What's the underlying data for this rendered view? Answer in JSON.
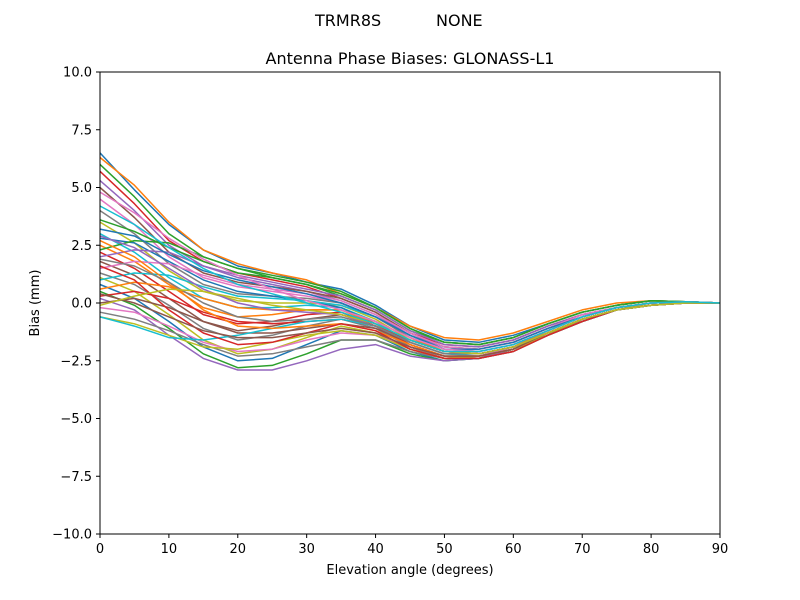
{
  "figure": {
    "suptitle_left": "TRMR8S",
    "suptitle_right": "NONE"
  },
  "chart_data": {
    "type": "line",
    "title": "Antenna Phase Biases: GLONASS-L1",
    "xlabel": "Elevation angle (degrees)",
    "ylabel": "Bias (mm)",
    "xlim": [
      0,
      90
    ],
    "ylim": [
      -10,
      10
    ],
    "xticks": [
      0,
      10,
      20,
      30,
      40,
      50,
      60,
      70,
      80,
      90
    ],
    "xtick_labels": [
      "0",
      "10",
      "20",
      "30",
      "40",
      "50",
      "60",
      "70",
      "80",
      "90"
    ],
    "yticks": [
      -10,
      -7.5,
      -5,
      -2.5,
      0,
      2.5,
      5,
      7.5,
      10
    ],
    "ytick_labels": [
      "−10.0",
      "−7.5",
      "−5.0",
      "−2.5",
      "0.0",
      "2.5",
      "5.0",
      "7.5",
      "10.0"
    ],
    "grid": false,
    "colors": [
      "#1f77b4",
      "#ff7f0e",
      "#2ca02c",
      "#d62728",
      "#9467bd",
      "#8c564b",
      "#e377c2",
      "#7f7f7f",
      "#bcbd22",
      "#17becf"
    ],
    "x": [
      0,
      5,
      10,
      15,
      20,
      25,
      30,
      35,
      40,
      45,
      50,
      55,
      60,
      65,
      70,
      75,
      80,
      85,
      90
    ],
    "series": [
      {
        "values": [
          6.5,
          4.9,
          3.4,
          2.3,
          1.6,
          1.3,
          0.9,
          0.6,
          -0.1,
          -1.0,
          -1.6,
          -1.7,
          -1.4,
          -0.9,
          -0.4,
          -0.1,
          0.1,
          0.05,
          0.0
        ]
      },
      {
        "values": [
          6.3,
          5.1,
          3.5,
          2.3,
          1.7,
          1.3,
          1.0,
          0.4,
          -0.2,
          -1.0,
          -1.5,
          -1.6,
          -1.3,
          -0.8,
          -0.3,
          0.0,
          0.1,
          0.05,
          0.0
        ]
      },
      {
        "values": [
          6.0,
          4.6,
          3.0,
          2.0,
          1.5,
          1.1,
          0.8,
          0.3,
          -0.3,
          -1.2,
          -1.7,
          -1.8,
          -1.5,
          -0.9,
          -0.4,
          -0.1,
          0.1,
          0.05,
          0.0
        ]
      },
      {
        "values": [
          5.7,
          4.3,
          2.7,
          1.8,
          1.3,
          1.0,
          0.7,
          0.2,
          -0.4,
          -1.3,
          -1.8,
          -1.9,
          -1.6,
          -1.0,
          -0.5,
          -0.2,
          0.0,
          0.05,
          0.0
        ]
      },
      {
        "values": [
          5.3,
          4.0,
          2.5,
          1.6,
          1.1,
          0.8,
          0.5,
          0.1,
          -0.5,
          -1.4,
          -1.9,
          -2.0,
          -1.7,
          -1.1,
          -0.5,
          -0.2,
          0.0,
          0.05,
          0.0
        ]
      },
      {
        "values": [
          5.0,
          3.7,
          2.2,
          1.3,
          0.9,
          0.7,
          0.5,
          0.2,
          -0.4,
          -1.3,
          -1.9,
          -2.0,
          -1.7,
          -1.1,
          -0.6,
          -0.2,
          0.0,
          0.05,
          0.0
        ]
      },
      {
        "values": [
          4.5,
          3.4,
          2.0,
          1.1,
          0.7,
          0.5,
          0.3,
          0.0,
          -0.6,
          -1.5,
          -2.0,
          -2.1,
          -1.8,
          -1.2,
          -0.6,
          -0.2,
          0.0,
          0.05,
          0.0
        ]
      },
      {
        "values": [
          4.0,
          3.0,
          1.7,
          0.8,
          0.4,
          0.3,
          0.2,
          0.0,
          -0.6,
          -1.5,
          -2.1,
          -2.2,
          -1.9,
          -1.2,
          -0.6,
          -0.2,
          0.0,
          0.05,
          0.0
        ]
      },
      {
        "values": [
          3.5,
          2.6,
          1.4,
          0.5,
          0.1,
          0.0,
          0.0,
          -0.1,
          -0.7,
          -1.6,
          -2.1,
          -2.2,
          -1.9,
          -1.3,
          -0.7,
          -0.3,
          0.0,
          0.05,
          0.0
        ]
      },
      {
        "values": [
          3.0,
          2.2,
          1.1,
          0.2,
          -0.2,
          -0.2,
          -0.1,
          -0.2,
          -0.8,
          -1.7,
          -2.2,
          -2.3,
          -2.0,
          -1.3,
          -0.7,
          -0.3,
          -0.1,
          0.0,
          0.0
        ]
      },
      {
        "values": [
          2.8,
          2.6,
          1.8,
          1.0,
          0.5,
          0.3,
          0.1,
          -0.2,
          -0.9,
          -1.6,
          -2.1,
          -2.2,
          -1.9,
          -1.3,
          -0.7,
          -0.3,
          -0.1,
          0.0,
          0.0
        ]
      },
      {
        "values": [
          2.5,
          1.8,
          0.8,
          -0.2,
          -0.6,
          -0.5,
          -0.3,
          -0.3,
          -0.9,
          -1.8,
          -2.3,
          -2.3,
          -2.0,
          -1.3,
          -0.7,
          -0.3,
          -0.1,
          0.0,
          0.0
        ]
      },
      {
        "values": [
          2.3,
          2.7,
          2.6,
          2.0,
          1.5,
          1.2,
          0.9,
          0.5,
          -0.2,
          -1.1,
          -1.7,
          -1.8,
          -1.5,
          -0.9,
          -0.4,
          -0.1,
          0.1,
          0.05,
          0.0
        ]
      },
      {
        "values": [
          2.2,
          1.5,
          0.5,
          -0.5,
          -0.9,
          -0.8,
          -0.5,
          -0.4,
          -1.0,
          -1.8,
          -2.3,
          -2.4,
          -2.0,
          -1.4,
          -0.7,
          -0.3,
          -0.1,
          0.0,
          0.0
        ]
      },
      {
        "values": [
          2.0,
          2.3,
          2.2,
          1.6,
          1.2,
          0.9,
          0.6,
          0.3,
          -0.3,
          -1.2,
          -1.8,
          -1.9,
          -1.6,
          -1.0,
          -0.5,
          -0.2,
          0.0,
          0.05,
          0.0
        ]
      },
      {
        "values": [
          1.8,
          1.2,
          0.2,
          -0.8,
          -1.2,
          -1.0,
          -0.7,
          -0.5,
          -1.0,
          -1.9,
          -2.4,
          -2.4,
          -2.1,
          -1.4,
          -0.8,
          -0.3,
          -0.1,
          0.0,
          0.0
        ]
      },
      {
        "values": [
          1.5,
          1.8,
          1.7,
          1.2,
          0.8,
          0.6,
          0.4,
          0.1,
          -0.5,
          -1.3,
          -1.9,
          -2.0,
          -1.7,
          -1.1,
          -0.5,
          -0.2,
          0.0,
          0.05,
          0.0
        ]
      },
      {
        "values": [
          1.3,
          0.8,
          -0.1,
          -1.1,
          -1.6,
          -1.4,
          -1.0,
          -0.7,
          -1.1,
          -1.9,
          -2.4,
          -2.4,
          -2.1,
          -1.4,
          -0.8,
          -0.3,
          -0.1,
          0.0,
          0.0
        ]
      },
      {
        "values": [
          1.1,
          0.5,
          -0.5,
          -1.6,
          -2.2,
          -2.0,
          -1.5,
          -1.0,
          -1.3,
          -2.0,
          -2.4,
          -2.4,
          -2.0,
          -1.4,
          -0.8,
          -0.3,
          -0.1,
          0.0,
          0.0
        ]
      },
      {
        "values": [
          1.0,
          1.3,
          1.2,
          0.7,
          0.3,
          0.2,
          0.1,
          -0.1,
          -0.6,
          -1.4,
          -2.0,
          -2.1,
          -1.8,
          -1.2,
          -0.6,
          -0.2,
          0.0,
          0.05,
          0.0
        ]
      },
      {
        "values": [
          0.8,
          0.2,
          -0.8,
          -1.9,
          -2.5,
          -2.4,
          -1.8,
          -1.2,
          -1.4,
          -2.1,
          -2.5,
          -2.4,
          -2.0,
          -1.4,
          -0.8,
          -0.3,
          -0.1,
          0.0,
          0.0
        ]
      },
      {
        "values": [
          0.6,
          0.9,
          0.7,
          0.2,
          -0.2,
          -0.3,
          -0.3,
          -0.3,
          -0.8,
          -1.5,
          -2.1,
          -2.2,
          -1.9,
          -1.2,
          -0.6,
          -0.2,
          0.0,
          0.05,
          0.0
        ]
      },
      {
        "values": [
          0.5,
          -0.1,
          -1.1,
          -2.2,
          -2.8,
          -2.7,
          -2.2,
          -1.6,
          -1.6,
          -2.2,
          -2.5,
          -2.4,
          -2.0,
          -1.4,
          -0.7,
          -0.3,
          -0.1,
          0.0,
          0.0
        ]
      },
      {
        "values": [
          0.3,
          0.5,
          0.2,
          -0.4,
          -0.8,
          -0.9,
          -0.8,
          -0.7,
          -1.0,
          -1.6,
          -2.1,
          -2.2,
          -1.9,
          -1.3,
          -0.7,
          -0.3,
          -0.1,
          0.0,
          0.0
        ]
      },
      {
        "values": [
          0.2,
          -0.3,
          -1.4,
          -2.4,
          -2.9,
          -2.9,
          -2.5,
          -2.0,
          -1.8,
          -2.3,
          -2.5,
          -2.4,
          -2.0,
          -1.4,
          -0.7,
          -0.3,
          -0.1,
          0.0,
          0.0
        ]
      },
      {
        "values": [
          0.0,
          0.2,
          -0.2,
          -0.8,
          -1.3,
          -1.3,
          -1.1,
          -0.9,
          -1.1,
          -1.7,
          -2.2,
          -2.2,
          -1.9,
          -1.3,
          -0.7,
          -0.3,
          -0.1,
          0.0,
          0.0
        ]
      },
      {
        "values": [
          -0.2,
          -0.4,
          -1.0,
          -1.7,
          -2.1,
          -2.0,
          -1.6,
          -1.3,
          -1.4,
          -1.9,
          -2.3,
          -2.3,
          -1.9,
          -1.3,
          -0.7,
          -0.3,
          -0.1,
          0.0,
          0.0
        ]
      },
      {
        "values": [
          -0.4,
          -0.7,
          -1.2,
          -1.8,
          -2.3,
          -2.2,
          -1.9,
          -1.6,
          -1.6,
          -2.1,
          -2.4,
          -2.3,
          -2.0,
          -1.4,
          -0.7,
          -0.3,
          -0.1,
          0.0,
          0.0
        ]
      },
      {
        "values": [
          -0.6,
          -0.9,
          -1.4,
          -1.9,
          -2.0,
          -1.7,
          -1.4,
          -1.2,
          -1.4,
          -2.0,
          -2.4,
          -2.3,
          -2.0,
          -1.4,
          -0.7,
          -0.3,
          -0.1,
          0.0,
          0.0
        ]
      },
      {
        "values": [
          -0.6,
          -1.0,
          -1.5,
          -1.6,
          -1.4,
          -1.1,
          -0.8,
          -0.7,
          -1.0,
          -1.7,
          -2.2,
          -2.2,
          -1.9,
          -1.3,
          -0.7,
          -0.3,
          -0.1,
          0.0,
          0.0
        ]
      },
      {
        "values": [
          3.2,
          2.9,
          2.1,
          1.4,
          1.0,
          0.7,
          0.4,
          0.0,
          -0.6,
          -1.4,
          -2.0,
          -2.0,
          -1.7,
          -1.1,
          -0.6,
          -0.2,
          0.0,
          0.05,
          0.0
        ]
      },
      {
        "values": [
          2.7,
          2.0,
          0.9,
          -0.3,
          -1.0,
          -1.1,
          -1.0,
          -0.9,
          -1.2,
          -1.8,
          -2.3,
          -2.3,
          -2.0,
          -1.3,
          -0.7,
          -0.3,
          -0.1,
          0.0,
          0.0
        ]
      },
      {
        "values": [
          3.6,
          3.1,
          2.4,
          1.8,
          1.3,
          1.1,
          0.8,
          0.4,
          -0.2,
          -1.1,
          -1.7,
          -1.8,
          -1.5,
          -0.9,
          -0.4,
          -0.1,
          0.1,
          0.05,
          0.0
        ]
      },
      {
        "values": [
          1.6,
          1.0,
          -0.3,
          -1.3,
          -1.8,
          -1.7,
          -1.3,
          -0.9,
          -1.2,
          -2.0,
          -2.4,
          -2.4,
          -2.1,
          -1.4,
          -0.8,
          -0.3,
          -0.1,
          0.0,
          0.0
        ]
      },
      {
        "values": [
          2.9,
          2.4,
          1.5,
          0.6,
          0.0,
          -0.3,
          -0.4,
          -0.5,
          -1.0,
          -1.7,
          -2.2,
          -2.2,
          -1.9,
          -1.3,
          -0.7,
          -0.3,
          -0.1,
          0.0,
          0.0
        ]
      },
      {
        "values": [
          0.4,
          0.0,
          -0.6,
          -1.2,
          -1.5,
          -1.5,
          -1.3,
          -1.1,
          -1.3,
          -1.9,
          -2.3,
          -2.3,
          -2.0,
          -1.3,
          -0.7,
          -0.3,
          -0.1,
          0.0,
          0.0
        ]
      },
      {
        "values": [
          4.8,
          3.9,
          2.8,
          1.9,
          1.2,
          0.6,
          0.1,
          -0.3,
          -0.8,
          -1.5,
          -2.0,
          -2.1,
          -1.8,
          -1.2,
          -0.6,
          -0.2,
          0.0,
          0.05,
          0.0
        ]
      },
      {
        "values": [
          1.9,
          1.6,
          0.9,
          0.0,
          -0.6,
          -0.8,
          -0.7,
          -0.6,
          -1.0,
          -1.7,
          -2.2,
          -2.2,
          -1.9,
          -1.3,
          -0.7,
          -0.3,
          -0.1,
          0.0,
          0.0
        ]
      },
      {
        "values": [
          -0.1,
          0.3,
          0.6,
          0.5,
          0.2,
          -0.1,
          -0.3,
          -0.5,
          -0.9,
          -1.6,
          -2.1,
          -2.2,
          -1.9,
          -1.3,
          -0.7,
          -0.3,
          -0.1,
          0.0,
          0.0
        ]
      },
      {
        "values": [
          4.2,
          3.4,
          2.4,
          1.5,
          0.8,
          0.4,
          0.0,
          -0.4,
          -0.9,
          -1.6,
          -2.1,
          -2.1,
          -1.8,
          -1.2,
          -0.6,
          -0.2,
          0.0,
          0.05,
          0.0
        ]
      }
    ]
  }
}
